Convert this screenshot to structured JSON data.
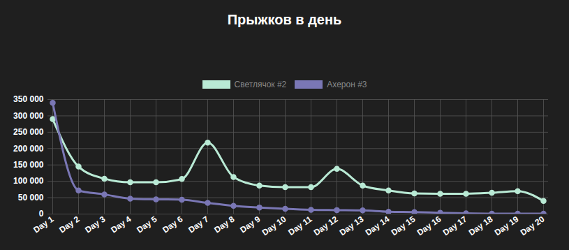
{
  "chart_data": {
    "type": "line",
    "title": "Прыжков в день",
    "categories": [
      "Day 1",
      "Day 2",
      "Day 3",
      "Day 4",
      "Day 5",
      "Day 6",
      "Day 7",
      "Day 8",
      "Day 9",
      "Day 10",
      "Day 11",
      "Day 12",
      "Day 13",
      "Day 14",
      "Day 15",
      "Day 16",
      "Day 17",
      "Day 18",
      "Day 19",
      "Day 20"
    ],
    "series": [
      {
        "name": "Светлячок #2",
        "color": "#b9ead5",
        "marker": "circle",
        "values": [
          290000,
          145000,
          108000,
          97000,
          97000,
          107000,
          218000,
          113000,
          87000,
          82000,
          82000,
          138000,
          87000,
          72000,
          63000,
          62000,
          62000,
          65000,
          70000,
          40000
        ]
      },
      {
        "name": "Ахерон #3",
        "color": "#7a77b5",
        "marker": "circle",
        "values": [
          340000,
          72000,
          60000,
          47000,
          45000,
          44000,
          34000,
          25000,
          20000,
          16000,
          13000,
          12000,
          11000,
          7000,
          6000,
          4000,
          2000,
          1000,
          1000,
          1000
        ]
      }
    ],
    "ylim": [
      0,
      350000
    ],
    "yticks": [
      {
        "value": 0,
        "label": "0"
      },
      {
        "value": 50000,
        "label": "50 000"
      },
      {
        "value": 100000,
        "label": "100 000"
      },
      {
        "value": 150000,
        "label": "150 000"
      },
      {
        "value": 200000,
        "label": "200 000"
      },
      {
        "value": 250000,
        "label": "250 000"
      },
      {
        "value": 300000,
        "label": "300 000"
      },
      {
        "value": 350000,
        "label": "350 000"
      }
    ],
    "grid": true,
    "legend": "top"
  }
}
